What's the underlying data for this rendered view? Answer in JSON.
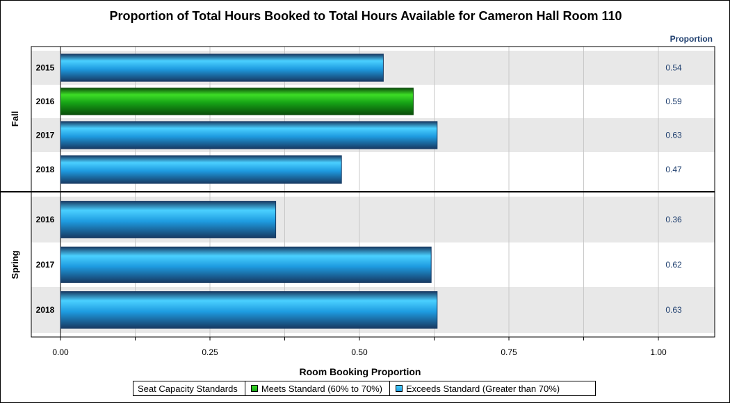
{
  "chart_data": {
    "type": "bar",
    "orientation": "horizontal",
    "title": "Proportion of Total Hours Booked to Total Hours Available for Cameron Hall Room 110",
    "xlabel": "Room Booking Proportion",
    "value_column_header": "Proportion",
    "xlim": [
      0,
      1.0
    ],
    "x_ticks": [
      "0.00",
      "0.25",
      "0.50",
      "0.75",
      "1.00"
    ],
    "grid": true,
    "groups": [
      {
        "name": "Fall",
        "bars": [
          {
            "category": "2015",
            "value": 0.54,
            "label": "0.54",
            "standard": "exceeds"
          },
          {
            "category": "2016",
            "value": 0.59,
            "label": "0.59",
            "standard": "meets"
          },
          {
            "category": "2017",
            "value": 0.63,
            "label": "0.63",
            "standard": "exceeds"
          },
          {
            "category": "2018",
            "value": 0.47,
            "label": "0.47",
            "standard": "exceeds"
          }
        ]
      },
      {
        "name": "Spring",
        "bars": [
          {
            "category": "2016",
            "value": 0.36,
            "label": "0.36",
            "standard": "exceeds"
          },
          {
            "category": "2017",
            "value": 0.62,
            "label": "0.62",
            "standard": "exceeds"
          },
          {
            "category": "2018",
            "value": 0.63,
            "label": "0.63",
            "standard": "exceeds"
          }
        ]
      }
    ],
    "legend": {
      "position": "bottom",
      "title": "Seat Capacity Standards",
      "items": [
        {
          "key": "meets",
          "label": "Meets Standard (60% to 70%)",
          "color": "#19b219"
        },
        {
          "key": "exceeds",
          "label": "Exceeds Standard (Greater than 70%)",
          "color": "#2aaaf0"
        }
      ]
    },
    "colors": {
      "meets": {
        "light": "#3dde26",
        "mid": "#16a316",
        "dark": "#0a4d0a"
      },
      "exceeds": {
        "light": "#4ad0ff",
        "mid": "#1e9be0",
        "dark": "#173a63"
      },
      "band": "#e8e8e8",
      "grid": "#c8c8c8",
      "value_text": "#1f3f6f"
    }
  }
}
